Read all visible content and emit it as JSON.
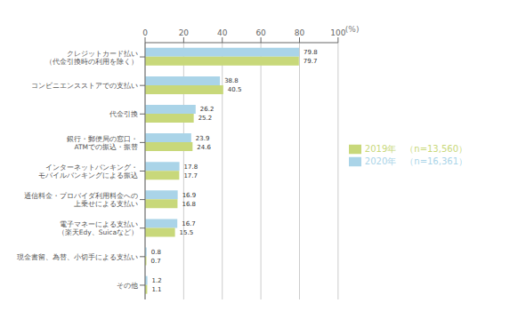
{
  "chart_data": {
    "type": "bar",
    "orientation": "horizontal",
    "categories": [
      "クレジットカード払い\n（代金引換時の利用を除く）",
      "コンビニエンスストアでの支払い",
      "代金引換",
      "銀行・郵便局の窓口・\nATMでの振込・振替",
      "インターネットバンキング・\nモバイルバンキングによる振込",
      "通信料金・プロバイダ利用料金への\n上乗せによる支払い",
      "電子マネーによる支払い\n（楽天Edy、Suicaなど）",
      "現金書留、為替、小切手による支払い",
      "その他"
    ],
    "series": [
      {
        "name": "2020年　（n=16,361）",
        "color": "#aad4e8",
        "values": [
          79.8,
          38.8,
          26.2,
          23.9,
          17.8,
          16.9,
          16.7,
          0.8,
          1.2
        ]
      },
      {
        "name": "2019年　（n=13,560）",
        "color": "#c8d87a",
        "values": [
          79.7,
          40.5,
          25.2,
          24.6,
          17.7,
          16.8,
          15.5,
          0.7,
          1.1
        ]
      }
    ],
    "xlabel": "(%)",
    "xlim": [
      0,
      100
    ],
    "xticks": [
      0,
      20,
      40,
      60,
      80,
      100
    ],
    "grid": true,
    "legend": "right",
    "data_labels": true
  }
}
